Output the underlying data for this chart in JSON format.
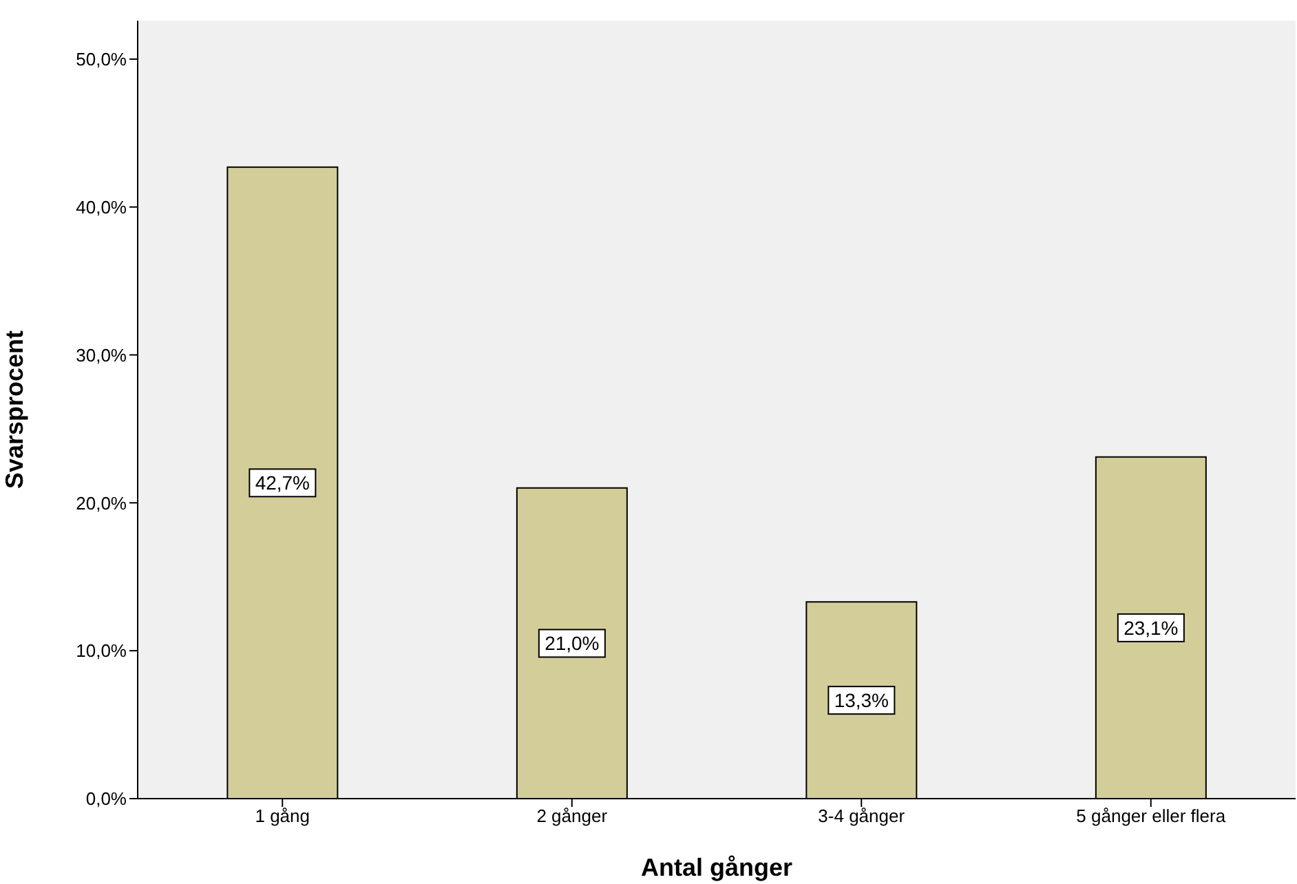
{
  "chart_data": {
    "type": "bar",
    "xlabel": "Antal gånger",
    "ylabel": "Svarsprocent",
    "categories": [
      "1 gång",
      "2 gånger",
      "3-4 gånger",
      "5 gånger eller flera"
    ],
    "values": [
      42.7,
      21.0,
      13.3,
      23.1
    ],
    "color": "#d3ce99",
    "value_labels": [
      "42,7%",
      "21,0%",
      "13,3%",
      "23,1%"
    ],
    "ylim": [
      0,
      52.6
    ],
    "yticks": [
      {
        "value": 0,
        "label": "0,0%"
      },
      {
        "value": 10,
        "label": "10,0%"
      },
      {
        "value": 20,
        "label": "20,0%"
      },
      {
        "value": 30,
        "label": "30,0%"
      },
      {
        "value": 40,
        "label": "40,0%"
      },
      {
        "value": 50,
        "label": "50,0%"
      }
    ],
    "legend": false
  }
}
